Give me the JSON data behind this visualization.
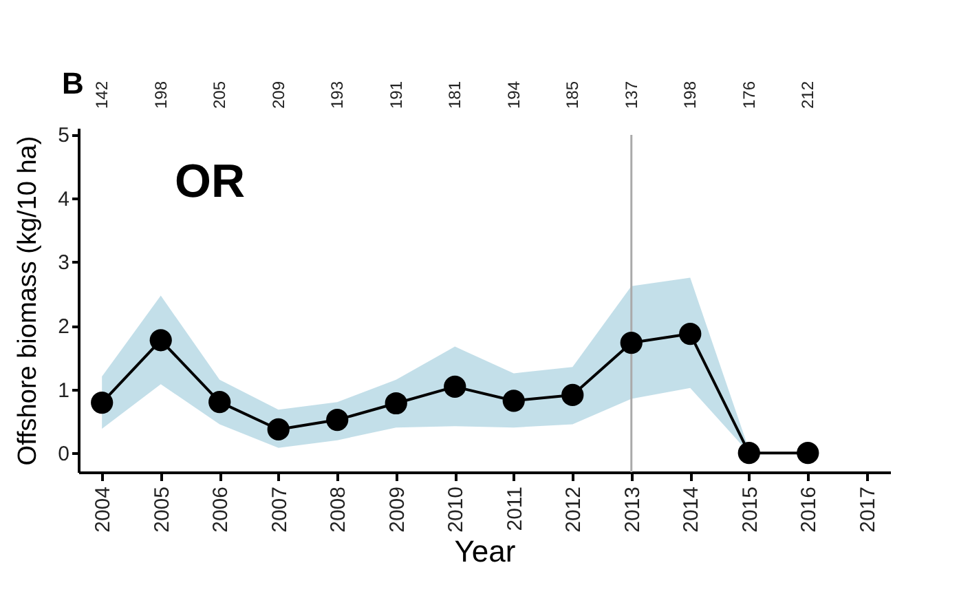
{
  "chart_data": {
    "type": "line",
    "xlabel": "Year",
    "ylabel": "Offshore biomass (kg/10 ha)",
    "annotations": [
      "B",
      "OR",
      "142",
      "198",
      "205",
      "209",
      "193",
      "191",
      "181",
      "194",
      "185",
      "137",
      "198",
      "176",
      "212"
    ],
    "x": [
      2004,
      2005,
      2006,
      2007,
      2008,
      2009,
      2010,
      2011,
      2012,
      2013,
      2014,
      2015,
      2016
    ],
    "series": [
      {
        "color": "#000000",
        "values": [
          0.79,
          1.77,
          0.8,
          0.37,
          0.52,
          0.78,
          1.04,
          0.82,
          0.91,
          1.73,
          1.87,
          0,
          0
        ],
        "lower": [
          0.38,
          1.08,
          0.45,
          0.08,
          0.2,
          0.4,
          0.42,
          0.4,
          0.45,
          0.85,
          1.02,
          0,
          null
        ],
        "upper": [
          1.2,
          2.47,
          1.15,
          0.68,
          0.8,
          1.15,
          1.67,
          1.25,
          1.35,
          2.62,
          2.75,
          0.05,
          null
        ]
      }
    ],
    "xlim": [
      2003.6,
      2017.4
    ],
    "xticks": [
      2004,
      2005,
      2006,
      2007,
      2008,
      2009,
      2010,
      2011,
      2012,
      2013,
      2014,
      2015,
      2016,
      2017
    ],
    "ylim": [
      -0.3,
      5.1
    ],
    "yticks": [
      0,
      1,
      2,
      3,
      4,
      5
    ],
    "ref_lines": [
      {
        "axis": "x",
        "value": 2013,
        "color": "#aaaaaa"
      }
    ],
    "marker": "circle",
    "line_style": "solid"
  }
}
